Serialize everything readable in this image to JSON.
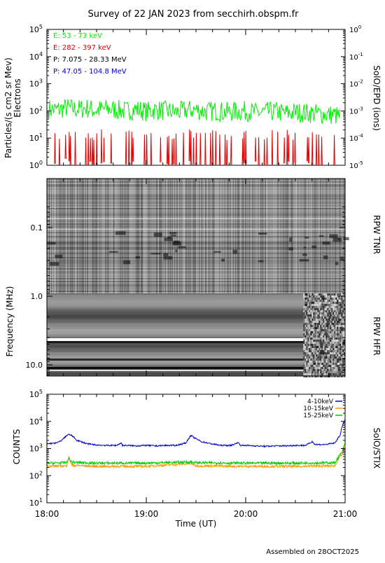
{
  "title": "Survey of 22 JAN 2023 from secchirh.obspm.fr",
  "footer": "Assembled on 28OCT2025",
  "x_axis": {
    "label": "Time (UT)",
    "ticks": [
      "18:00",
      "19:00",
      "20:00",
      "21:00"
    ],
    "range_hours": [
      18,
      21
    ]
  },
  "panels": {
    "epd": {
      "ylabel": "Particles/(s cm2 sr Mev)",
      "ylabel2": "Electrons",
      "right_label": "SolO/EPD (ions)",
      "left_ticks": [
        {
          "base": "10",
          "exp": "0"
        },
        {
          "base": "10",
          "exp": "1"
        },
        {
          "base": "10",
          "exp": "2"
        },
        {
          "base": "10",
          "exp": "3"
        },
        {
          "base": "10",
          "exp": "4"
        },
        {
          "base": "10",
          "exp": "5"
        }
      ],
      "right_ticks": [
        {
          "base": "10",
          "exp": "-5"
        },
        {
          "base": "10",
          "exp": "-4"
        },
        {
          "base": "10",
          "exp": "-3"
        },
        {
          "base": "10",
          "exp": "-2"
        },
        {
          "base": "10",
          "exp": "-1"
        },
        {
          "base": "10",
          "exp": "0"
        }
      ],
      "legend": [
        {
          "label": "E: 53 - 73 keV",
          "color": "#00ee00"
        },
        {
          "label": "E: 282 - 397 keV",
          "color": "#dd0000"
        },
        {
          "label": "P: 7.075 - 28.33 MeV",
          "color": "#000000"
        },
        {
          "label": "P: 47.05 - 104.8 MeV",
          "color": "#0000cc"
        }
      ]
    },
    "rpw": {
      "ylabel": "Frequency (MHz)",
      "ticks": [
        "0.1",
        "1.0",
        "10.0"
      ],
      "tnr_label": "RPW TNR",
      "hfr_label": "RPW HFR"
    },
    "stix": {
      "ylabel": "COUNTS",
      "right_label": "SolO/STIX",
      "ticks": [
        {
          "base": "10",
          "exp": "1"
        },
        {
          "base": "10",
          "exp": "2"
        },
        {
          "base": "10",
          "exp": "3"
        },
        {
          "base": "10",
          "exp": "4"
        },
        {
          "base": "10",
          "exp": "5"
        }
      ],
      "legend": [
        {
          "label": "4-10keV",
          "color": "#0000cc"
        },
        {
          "label": "10-15keV",
          "color": "#ff9900"
        },
        {
          "label": "15-25keV",
          "color": "#00cc00"
        }
      ]
    }
  },
  "chart_data": [
    {
      "type": "line",
      "title": "SolO/EPD",
      "xlabel": "",
      "ylabel": "Particles/(s cm2 sr Mev)",
      "y_scale": "log",
      "ylim": [
        1,
        100000
      ],
      "xlim": [
        18,
        21
      ],
      "series": [
        {
          "name": "E: 53 - 73 keV",
          "color": "#00ee00",
          "x": [
            18.0,
            18.1,
            18.2,
            18.3,
            18.4,
            18.5,
            18.6,
            18.7,
            18.8,
            18.9,
            19.0,
            19.1,
            19.2,
            19.3,
            19.4,
            19.5,
            19.6,
            19.7,
            19.8,
            19.9,
            20.0,
            20.1,
            20.2,
            20.3,
            20.4,
            20.5,
            20.6,
            20.7,
            20.8,
            20.9,
            20.95
          ],
          "y": [
            120,
            110,
            130,
            115,
            125,
            105,
            120,
            110,
            100,
            115,
            95,
            110,
            100,
            90,
            105,
            110,
            95,
            100,
            90,
            95,
            100,
            85,
            90,
            95,
            80,
            90,
            85,
            80,
            75,
            70,
            60
          ]
        },
        {
          "name": "E: 282 - 397 keV",
          "color": "#dd0000",
          "x": [
            18.0,
            18.1,
            18.2,
            18.3,
            18.4,
            18.5,
            18.6,
            18.7,
            18.8,
            18.9,
            19.0,
            19.1,
            19.2,
            19.3,
            19.4,
            19.5,
            19.6,
            19.7,
            19.8,
            19.9,
            20.0,
            20.1,
            20.2,
            20.3,
            20.4,
            20.5,
            20.6,
            20.7,
            20.8,
            20.9,
            20.95
          ],
          "y": [
            10,
            8,
            12,
            9,
            10,
            8,
            11,
            9,
            10,
            8,
            9,
            10,
            8,
            9,
            10,
            8,
            9,
            10,
            8,
            9,
            10,
            9,
            8,
            10,
            9,
            8,
            10,
            9,
            8,
            9,
            8
          ]
        }
      ]
    },
    {
      "type": "heatmap",
      "title": "RPW TNR / RPW HFR",
      "ylabel": "Frequency (MHz)",
      "y_scale": "log",
      "ylim": [
        0.04,
        16
      ],
      "xlim": [
        18,
        21
      ]
    },
    {
      "type": "line",
      "title": "SolO/STIX",
      "xlabel": "Time (UT)",
      "ylabel": "COUNTS",
      "y_scale": "log",
      "ylim": [
        10,
        100000
      ],
      "xlim": [
        18,
        21
      ],
      "series": [
        {
          "name": "4-10keV",
          "color": "#0000cc",
          "x": [
            18.0,
            18.1,
            18.15,
            18.2,
            18.22,
            18.25,
            18.3,
            18.4,
            18.5,
            18.6,
            18.7,
            18.75,
            18.76,
            18.8,
            18.9,
            19.0,
            19.1,
            19.2,
            19.3,
            19.4,
            19.45,
            19.48,
            19.55,
            19.65,
            19.75,
            19.85,
            19.9,
            19.92,
            19.95,
            20.0,
            20.1,
            20.2,
            20.3,
            20.4,
            20.5,
            20.6,
            20.65,
            20.67,
            20.7,
            20.8,
            20.9,
            20.95,
            20.98,
            21.0
          ],
          "y": [
            1500,
            1600,
            2000,
            3000,
            3300,
            3000,
            2000,
            1500,
            1350,
            1300,
            1300,
            1600,
            1300,
            1300,
            1250,
            1300,
            1250,
            1300,
            1300,
            1600,
            3000,
            2500,
            1800,
            1500,
            1300,
            1300,
            1500,
            1700,
            1300,
            1300,
            1250,
            1200,
            1250,
            1250,
            1300,
            1300,
            1600,
            1800,
            1400,
            1400,
            1600,
            3000,
            8000,
            12000
          ]
        },
        {
          "name": "10-15keV",
          "color": "#ff9900",
          "x": [
            18.0,
            18.2,
            18.22,
            18.25,
            18.5,
            19.0,
            19.45,
            19.5,
            20.0,
            20.5,
            20.9,
            20.97,
            21.0
          ],
          "y": [
            220,
            230,
            500,
            240,
            220,
            220,
            280,
            230,
            220,
            220,
            230,
            600,
            1200
          ]
        },
        {
          "name": "15-25keV",
          "color": "#00cc00",
          "x": [
            18.0,
            18.2,
            18.22,
            18.25,
            18.5,
            19.0,
            19.45,
            19.5,
            20.0,
            20.5,
            20.9,
            20.97,
            21.0
          ],
          "y": [
            290,
            300,
            420,
            310,
            290,
            290,
            320,
            300,
            290,
            290,
            300,
            700,
            1500
          ]
        }
      ]
    }
  ]
}
